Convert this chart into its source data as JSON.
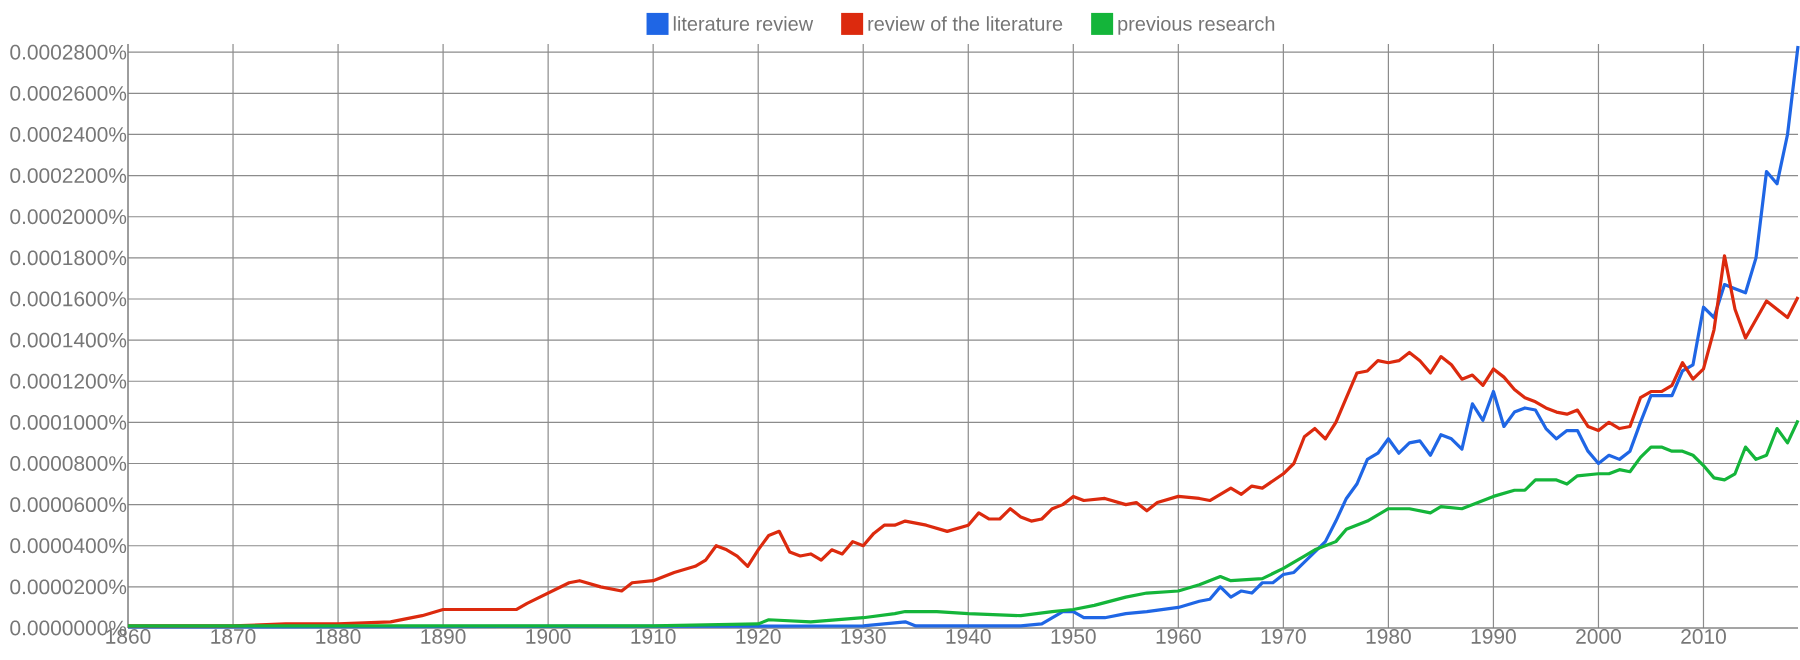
{
  "chart_data": {
    "type": "line",
    "xlim": [
      1860,
      2019
    ],
    "ylim": [
      0,
      0.000284
    ],
    "xticks": [
      1860,
      1870,
      1880,
      1890,
      1900,
      1910,
      1920,
      1930,
      1940,
      1950,
      1960,
      1970,
      1980,
      1990,
      2000,
      2010
    ],
    "yticks": [
      {
        "value": 0,
        "label": "0.0000000%"
      },
      {
        "value": 2e-05,
        "label": "0.0000200%"
      },
      {
        "value": 4e-05,
        "label": "0.0000400%"
      },
      {
        "value": 6e-05,
        "label": "0.0000600%"
      },
      {
        "value": 8e-05,
        "label": "0.0000800%"
      },
      {
        "value": 0.0001,
        "label": "0.0001000%"
      },
      {
        "value": 0.00012,
        "label": "0.0001200%"
      },
      {
        "value": 0.00014,
        "label": "0.0001400%"
      },
      {
        "value": 0.00016,
        "label": "0.0001600%"
      },
      {
        "value": 0.00018,
        "label": "0.0001800%"
      },
      {
        "value": 0.0002,
        "label": "0.0002000%"
      },
      {
        "value": 0.00022,
        "label": "0.0002200%"
      },
      {
        "value": 0.00024,
        "label": "0.0002400%"
      },
      {
        "value": 0.00026,
        "label": "0.0002600%"
      },
      {
        "value": 0.00028,
        "label": "0.0002800%"
      }
    ],
    "grid": true,
    "legend": "top",
    "marker": "none",
    "line_style": "solid",
    "series": [
      {
        "name": "literature review",
        "color": "#1f66e5",
        "x": [
          1860,
          1930,
          1934,
          1935,
          1940,
          1945,
          1947,
          1948,
          1949,
          1950,
          1951,
          1953,
          1955,
          1957,
          1960,
          1962,
          1963,
          1964,
          1965,
          1966,
          1967,
          1968,
          1969,
          1970,
          1971,
          1972,
          1973,
          1974,
          1975,
          1976,
          1977,
          1978,
          1979,
          1980,
          1981,
          1982,
          1983,
          1984,
          1985,
          1986,
          1987,
          1988,
          1989,
          1990,
          1991,
          1992,
          1993,
          1994,
          1995,
          1996,
          1997,
          1998,
          1999,
          2000,
          2001,
          2002,
          2003,
          2004,
          2005,
          2006,
          2007,
          2008,
          2009,
          2010,
          2011,
          2012,
          2013,
          2014,
          2015,
          2016,
          2017,
          2018,
          2019
        ],
        "values": [
          5e-07,
          1e-06,
          3e-06,
          1e-06,
          1e-06,
          1e-06,
          2e-06,
          5e-06,
          8e-06,
          8e-06,
          5e-06,
          5e-06,
          7e-06,
          8e-06,
          1e-05,
          1.3e-05,
          1.4e-05,
          2e-05,
          1.5e-05,
          1.8e-05,
          1.7e-05,
          2.2e-05,
          2.2e-05,
          2.6e-05,
          2.7e-05,
          3.2e-05,
          3.7e-05,
          4.2e-05,
          5.2e-05,
          6.3e-05,
          7e-05,
          8.2e-05,
          8.5e-05,
          9.2e-05,
          8.5e-05,
          9e-05,
          9.1e-05,
          8.4e-05,
          9.4e-05,
          9.2e-05,
          8.7e-05,
          0.000109,
          0.000101,
          0.000115,
          9.8e-05,
          0.000105,
          0.000107,
          0.000106,
          9.7e-05,
          9.2e-05,
          9.6e-05,
          9.6e-05,
          8.6e-05,
          8e-05,
          8.4e-05,
          8.2e-05,
          8.6e-05,
          0.0001,
          0.000113,
          0.000113,
          0.000113,
          0.000125,
          0.000128,
          0.000156,
          0.000151,
          0.000167,
          0.000165,
          0.000163,
          0.00018,
          0.000222,
          0.000216,
          0.00024,
          0.000283
        ]
      },
      {
        "name": "review of the literature",
        "color": "#dc2a0e",
        "x": [
          1860,
          1870,
          1875,
          1880,
          1885,
          1888,
          1890,
          1895,
          1897,
          1898,
          1900,
          1902,
          1903,
          1905,
          1907,
          1908,
          1910,
          1912,
          1914,
          1915,
          1916,
          1917,
          1918,
          1919,
          1920,
          1921,
          1922,
          1923,
          1924,
          1925,
          1926,
          1927,
          1928,
          1929,
          1930,
          1931,
          1932,
          1933,
          1934,
          1936,
          1938,
          1940,
          1941,
          1942,
          1943,
          1944,
          1945,
          1946,
          1947,
          1948,
          1949,
          1950,
          1951,
          1953,
          1955,
          1956,
          1957,
          1958,
          1960,
          1962,
          1963,
          1965,
          1966,
          1967,
          1968,
          1970,
          1971,
          1972,
          1973,
          1974,
          1975,
          1976,
          1977,
          1978,
          1979,
          1980,
          1981,
          1982,
          1983,
          1984,
          1985,
          1986,
          1987,
          1988,
          1989,
          1990,
          1991,
          1992,
          1993,
          1994,
          1995,
          1996,
          1997,
          1998,
          1999,
          2000,
          2001,
          2002,
          2003,
          2004,
          2005,
          2006,
          2007,
          2008,
          2009,
          2010,
          2011,
          2012,
          2013,
          2014,
          2015,
          2016,
          2017,
          2018,
          2019
        ],
        "values": [
          1e-06,
          1e-06,
          2e-06,
          2e-06,
          3e-06,
          6e-06,
          9e-06,
          9e-06,
          9e-06,
          1.2e-05,
          1.7e-05,
          2.2e-05,
          2.3e-05,
          2e-05,
          1.8e-05,
          2.2e-05,
          2.3e-05,
          2.7e-05,
          3e-05,
          3.3e-05,
          4e-05,
          3.8e-05,
          3.5e-05,
          3e-05,
          3.8e-05,
          4.5e-05,
          4.7e-05,
          3.7e-05,
          3.5e-05,
          3.6e-05,
          3.3e-05,
          3.8e-05,
          3.6e-05,
          4.2e-05,
          4e-05,
          4.6e-05,
          5e-05,
          5e-05,
          5.2e-05,
          5e-05,
          4.7e-05,
          5e-05,
          5.6e-05,
          5.3e-05,
          5.3e-05,
          5.8e-05,
          5.4e-05,
          5.2e-05,
          5.3e-05,
          5.8e-05,
          6e-05,
          6.4e-05,
          6.2e-05,
          6.3e-05,
          6e-05,
          6.1e-05,
          5.7e-05,
          6.1e-05,
          6.4e-05,
          6.3e-05,
          6.2e-05,
          6.8e-05,
          6.5e-05,
          6.9e-05,
          6.8e-05,
          7.5e-05,
          8e-05,
          9.3e-05,
          9.7e-05,
          9.2e-05,
          0.0001,
          0.000112,
          0.000124,
          0.000125,
          0.00013,
          0.000129,
          0.00013,
          0.000134,
          0.00013,
          0.000124,
          0.000132,
          0.000128,
          0.000121,
          0.000123,
          0.000118,
          0.000126,
          0.000122,
          0.000116,
          0.000112,
          0.00011,
          0.000107,
          0.000105,
          0.000104,
          0.000106,
          9.8e-05,
          9.6e-05,
          0.0001,
          9.7e-05,
          9.8e-05,
          0.000112,
          0.000115,
          0.000115,
          0.000118,
          0.000129,
          0.000121,
          0.000126,
          0.000145,
          0.000181,
          0.000155,
          0.000141,
          0.00015,
          0.000159,
          0.000155,
          0.000151,
          0.000161
        ]
      },
      {
        "name": "previous research",
        "color": "#14b53a",
        "x": [
          1860,
          1870,
          1880,
          1890,
          1900,
          1910,
          1920,
          1921,
          1925,
          1930,
          1933,
          1934,
          1937,
          1940,
          1945,
          1948,
          1950,
          1952,
          1955,
          1957,
          1960,
          1962,
          1964,
          1965,
          1968,
          1970,
          1972,
          1973,
          1975,
          1976,
          1978,
          1980,
          1982,
          1984,
          1985,
          1987,
          1990,
          1992,
          1993,
          1994,
          1996,
          1997,
          1998,
          2000,
          2001,
          2002,
          2003,
          2004,
          2005,
          2006,
          2007,
          2008,
          2009,
          2010,
          2011,
          2012,
          2013,
          2014,
          2015,
          2016,
          2017,
          2018,
          2019
        ],
        "values": [
          1e-06,
          1e-06,
          1e-06,
          1e-06,
          1e-06,
          1e-06,
          2e-06,
          4e-06,
          3e-06,
          5e-06,
          7e-06,
          8e-06,
          8e-06,
          7e-06,
          6e-06,
          8e-06,
          9e-06,
          1.1e-05,
          1.5e-05,
          1.7e-05,
          1.8e-05,
          2.1e-05,
          2.5e-05,
          2.3e-05,
          2.4e-05,
          2.9e-05,
          3.5e-05,
          3.8e-05,
          4.2e-05,
          4.8e-05,
          5.2e-05,
          5.8e-05,
          5.8e-05,
          5.6e-05,
          5.9e-05,
          5.8e-05,
          6.4e-05,
          6.7e-05,
          6.7e-05,
          7.2e-05,
          7.2e-05,
          7e-05,
          7.4e-05,
          7.5e-05,
          7.5e-05,
          7.7e-05,
          7.6e-05,
          8.3e-05,
          8.8e-05,
          8.8e-05,
          8.6e-05,
          8.6e-05,
          8.4e-05,
          7.9e-05,
          7.3e-05,
          7.2e-05,
          7.5e-05,
          8.8e-05,
          8.2e-05,
          8.4e-05,
          9.7e-05,
          9e-05,
          0.000101
        ]
      }
    ]
  }
}
